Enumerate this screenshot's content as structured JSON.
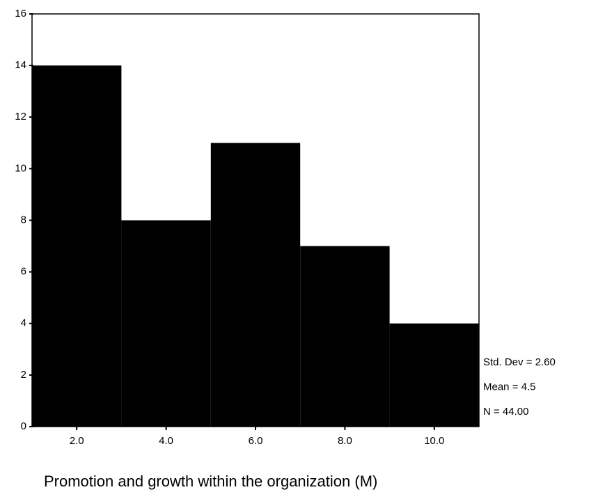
{
  "chart_data": {
    "type": "histogram",
    "x_label": "Promotion and growth within the organization (M)",
    "bins": [
      1,
      3,
      5,
      7,
      9,
      11
    ],
    "values": [
      14,
      8,
      11,
      7,
      4
    ],
    "color": "#000000",
    "xlim": [
      1,
      11
    ],
    "xticks": [
      {
        "value": 2,
        "label": "2.0"
      },
      {
        "value": 4,
        "label": "4.0"
      },
      {
        "value": 6,
        "label": "6.0"
      },
      {
        "value": 8,
        "label": "8.0"
      },
      {
        "value": 10,
        "label": "10.0"
      }
    ],
    "ylim": [
      0,
      16
    ],
    "yticks": [
      0,
      2,
      4,
      6,
      8,
      10,
      12,
      14,
      16
    ],
    "annotations": [
      "Std. Dev = 2.60",
      "Mean = 4.5",
      "N = 44.00"
    ]
  }
}
